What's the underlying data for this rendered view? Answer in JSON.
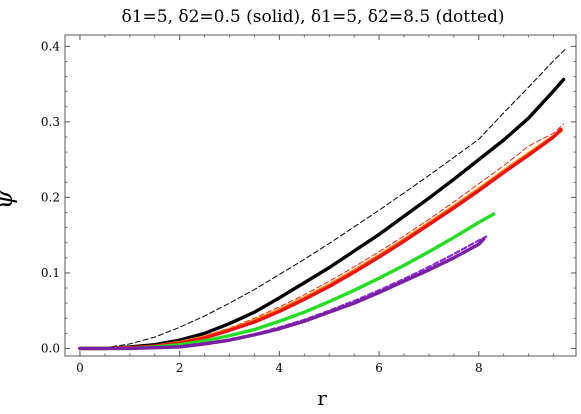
{
  "chart_data": {
    "type": "line",
    "title": "δ1=5, δ2=0.5 (solid), δ1=5, δ2=8.5 (dotted)",
    "xlabel": "r",
    "ylabel": "ψ",
    "xlim": [
      -0.3,
      9.95
    ],
    "ylim": [
      -0.01,
      0.415
    ],
    "x_ticks": [
      0,
      2,
      4,
      6,
      8
    ],
    "y_ticks": [
      0.0,
      0.1,
      0.2,
      0.3,
      0.4
    ],
    "x_tick_labels": [
      "0",
      "2",
      "4",
      "6",
      "8"
    ],
    "y_tick_labels": [
      "0.0",
      "0.1",
      "0.2",
      "0.3",
      "0.4"
    ],
    "grid": false,
    "series": [
      {
        "color": "#000000",
        "style": "dashed",
        "x": [
          0,
          0.5,
          1,
          1.5,
          2,
          2.5,
          3,
          3.5,
          4,
          4.5,
          5,
          5.5,
          6,
          6.5,
          7,
          7.5,
          8,
          8.5,
          9,
          9.5,
          9.75
        ],
        "y": [
          0.0,
          0.001,
          0.006,
          0.015,
          0.028,
          0.043,
          0.06,
          0.078,
          0.098,
          0.118,
          0.139,
          0.161,
          0.183,
          0.206,
          0.229,
          0.253,
          0.277,
          0.312,
          0.346,
          0.381,
          0.397
        ]
      },
      {
        "color": "#000000",
        "style": "solid",
        "x": [
          0,
          0.5,
          1,
          1.5,
          2,
          2.5,
          3,
          3.5,
          4,
          4.5,
          5,
          5.5,
          6,
          6.5,
          7,
          7.5,
          8,
          8.5,
          9,
          9.5,
          9.7
        ],
        "y": [
          0.0,
          0.0,
          0.002,
          0.005,
          0.011,
          0.02,
          0.033,
          0.048,
          0.067,
          0.087,
          0.107,
          0.129,
          0.151,
          0.175,
          0.199,
          0.224,
          0.25,
          0.276,
          0.305,
          0.341,
          0.356
        ]
      },
      {
        "color": "#ff2020",
        "style": "dashed",
        "x": [
          0,
          0.5,
          1,
          1.5,
          2,
          2.5,
          3,
          3.5,
          4,
          4.5,
          5,
          5.5,
          6,
          6.5,
          7,
          7.5,
          8,
          8.5,
          9,
          9.5,
          9.7
        ],
        "y": [
          0.0,
          0.0,
          0.001,
          0.004,
          0.009,
          0.017,
          0.027,
          0.04,
          0.055,
          0.071,
          0.089,
          0.108,
          0.128,
          0.149,
          0.171,
          0.194,
          0.218,
          0.242,
          0.268,
          0.285,
          0.297
        ]
      },
      {
        "color": "#ff8c00",
        "style": "solid",
        "x": [
          0,
          0.5,
          1,
          1.5,
          2,
          2.5,
          3,
          3.5,
          4,
          4.5,
          5,
          5.5,
          6,
          6.5,
          7,
          7.5,
          8,
          8.5,
          9,
          9.5,
          9.65
        ],
        "y": [
          0.0,
          0.0,
          0.001,
          0.003,
          0.008,
          0.015,
          0.025,
          0.037,
          0.051,
          0.067,
          0.084,
          0.103,
          0.123,
          0.144,
          0.166,
          0.188,
          0.211,
          0.235,
          0.258,
          0.281,
          0.288
        ]
      },
      {
        "color": "#ee1111",
        "style": "solid",
        "x": [
          0,
          0.5,
          1,
          1.5,
          2,
          2.5,
          3,
          3.5,
          4,
          4.5,
          5,
          5.5,
          6,
          6.5,
          7,
          7.5,
          8,
          8.5,
          9,
          9.5,
          9.65
        ],
        "y": [
          0.0,
          0.0,
          0.001,
          0.003,
          0.007,
          0.014,
          0.024,
          0.035,
          0.049,
          0.065,
          0.082,
          0.101,
          0.121,
          0.142,
          0.164,
          0.186,
          0.209,
          0.233,
          0.256,
          0.28,
          0.29
        ]
      },
      {
        "color": "#22dd22",
        "style": "solid",
        "x": [
          0,
          0.5,
          1,
          1.5,
          2,
          2.5,
          3,
          3.5,
          4,
          4.5,
          5,
          5.5,
          6,
          6.5,
          7,
          7.5,
          8,
          8.3
        ],
        "y": [
          0.0,
          0.0,
          0.0,
          0.002,
          0.005,
          0.01,
          0.017,
          0.025,
          0.036,
          0.048,
          0.062,
          0.077,
          0.093,
          0.11,
          0.128,
          0.147,
          0.167,
          0.178
        ]
      },
      {
        "color": "#8a2be2",
        "style": "dashed",
        "x": [
          0,
          0.5,
          1,
          1.5,
          2,
          2.5,
          3,
          3.5,
          4,
          4.5,
          5,
          5.5,
          6,
          6.5,
          7,
          7.5,
          8,
          8.15
        ],
        "y": [
          0.0,
          0.0,
          0.0,
          0.001,
          0.003,
          0.007,
          0.012,
          0.019,
          0.028,
          0.038,
          0.05,
          0.063,
          0.077,
          0.092,
          0.108,
          0.125,
          0.143,
          0.148
        ]
      },
      {
        "color": "#7b1fa2",
        "style": "solid",
        "x": [
          0,
          0.5,
          1,
          1.5,
          2,
          2.5,
          3,
          3.5,
          4,
          4.5,
          5,
          5.5,
          6,
          6.5,
          7,
          7.5,
          8,
          8.1
        ],
        "y": [
          0.0,
          0.0,
          0.0,
          0.001,
          0.002,
          0.006,
          0.011,
          0.018,
          0.026,
          0.036,
          0.048,
          0.06,
          0.074,
          0.089,
          0.104,
          0.12,
          0.138,
          0.145
        ]
      }
    ]
  }
}
